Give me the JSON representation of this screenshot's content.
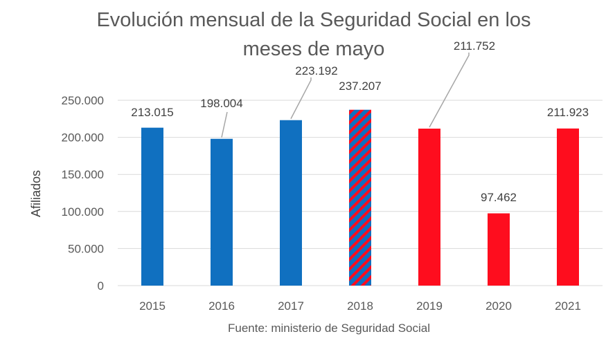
{
  "chart_data": {
    "type": "bar",
    "title_lines": [
      "Evolución mensual de la Seguridad Social en los",
      "meses de mayo"
    ],
    "categories": [
      "2015",
      "2016",
      "2017",
      "2018",
      "2019",
      "2020",
      "2021"
    ],
    "values": [
      213015,
      198004,
      223192,
      237207,
      211752,
      97462,
      211923
    ],
    "value_labels": [
      "213.015",
      "198.004",
      "223.192",
      "237.207",
      "211.752",
      "97.462",
      "211.923"
    ],
    "bar_styles": [
      "blue",
      "blue",
      "blue",
      "striped",
      "red",
      "red",
      "red"
    ],
    "ylabel": "Afiliados",
    "xlabel": "",
    "ylim": [
      0,
      250000
    ],
    "yticks": [
      0,
      50000,
      100000,
      150000,
      200000,
      250000
    ],
    "ytick_labels": [
      "0",
      "50.000",
      "100.000",
      "150.000",
      "200.000",
      "250.000"
    ],
    "grid": true,
    "source": "Fuente: ministerio de Seguridad Social"
  },
  "colors": {
    "blue": "#1070c0",
    "red": "#fe0d1e",
    "grid": "#d9d9d9",
    "text": "#595959"
  }
}
